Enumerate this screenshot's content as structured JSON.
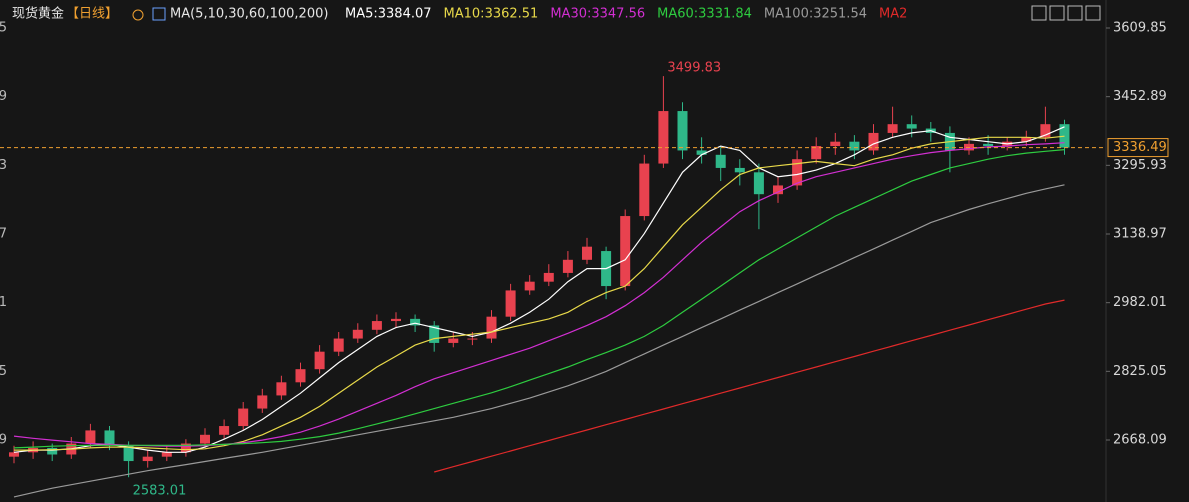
{
  "chart_data": {
    "type": "candlestick",
    "title": "现货黄金",
    "period": "【日线】",
    "ma_label": "MA(5,10,30,60,100,200)",
    "up_color": "#e8424f",
    "down_color": "#2fb889",
    "open": [
      2630,
      2640,
      2650,
      2635,
      2660,
      2690,
      2655,
      2620,
      2630,
      2640,
      2660,
      2680,
      2700,
      2740,
      2770,
      2800,
      2830,
      2870,
      2900,
      2920,
      2940,
      2945,
      2930,
      2890,
      2900,
      2900,
      2950,
      3010,
      3030,
      3050,
      3080,
      3100,
      3020,
      3180,
      3300,
      3420,
      3330,
      3320,
      3290,
      3280,
      3230,
      3250,
      3310,
      3340,
      3350,
      3330,
      3370,
      3390,
      3380,
      3370,
      3330,
      3345,
      3340,
      3350,
      3360,
      3390
    ],
    "high": [
      2655,
      2665,
      2660,
      2675,
      2705,
      2700,
      2665,
      2645,
      2655,
      2670,
      2695,
      2715,
      2755,
      2785,
      2815,
      2845,
      2885,
      2915,
      2935,
      2955,
      2960,
      2955,
      2940,
      2915,
      2915,
      2965,
      3025,
      3045,
      3070,
      3100,
      3130,
      3110,
      3195,
      3320,
      3499.83,
      3440,
      3360,
      3340,
      3310,
      3300,
      3270,
      3330,
      3360,
      3370,
      3365,
      3390,
      3430,
      3410,
      3395,
      3385,
      3360,
      3365,
      3360,
      3375,
      3430,
      3400
    ],
    "low": [
      2615,
      2625,
      2620,
      2625,
      2650,
      2645,
      2583.01,
      2605,
      2620,
      2630,
      2650,
      2670,
      2690,
      2730,
      2760,
      2790,
      2820,
      2860,
      2890,
      2910,
      2925,
      2915,
      2870,
      2880,
      2885,
      2890,
      2940,
      3000,
      3020,
      3040,
      3070,
      2990,
      3010,
      3170,
      3290,
      3310,
      3300,
      3260,
      3250,
      3150,
      3210,
      3240,
      3300,
      3320,
      3310,
      3320,
      3360,
      3360,
      3350,
      3280,
      3320,
      3320,
      3330,
      3340,
      3350,
      3320
    ],
    "close": [
      2640,
      2650,
      2635,
      2660,
      2690,
      2655,
      2620,
      2630,
      2640,
      2660,
      2680,
      2700,
      2740,
      2770,
      2800,
      2830,
      2870,
      2900,
      2920,
      2940,
      2945,
      2930,
      2890,
      2900,
      2900,
      2950,
      3010,
      3030,
      3050,
      3080,
      3110,
      3020,
      3180,
      3300,
      3420,
      3330,
      3320,
      3290,
      3280,
      3230,
      3250,
      3310,
      3340,
      3350,
      3330,
      3370,
      3390,
      3380,
      3370,
      3330,
      3345,
      3340,
      3350,
      3360,
      3390,
      3336.49
    ],
    "series": [
      {
        "name": "MA5:3384.07",
        "color": "#ffffff",
        "values": [
          2640,
          2645,
          2645,
          2648,
          2655,
          2658,
          2652,
          2645,
          2640,
          2640,
          2652,
          2670,
          2690,
          2715,
          2745,
          2775,
          2810,
          2845,
          2875,
          2905,
          2925,
          2935,
          2925,
          2915,
          2905,
          2915,
          2935,
          2960,
          2990,
          3030,
          3060,
          3060,
          3080,
          3140,
          3210,
          3280,
          3320,
          3340,
          3330,
          3290,
          3270,
          3275,
          3285,
          3300,
          3320,
          3345,
          3360,
          3370,
          3375,
          3360,
          3355,
          3350,
          3345,
          3350,
          3365,
          3384.07
        ]
      },
      {
        "name": "MA10:3362.51",
        "color": "#e8d94a",
        "values": [
          2645,
          2645,
          2646,
          2647,
          2650,
          2652,
          2652,
          2650,
          2648,
          2646,
          2648,
          2655,
          2665,
          2680,
          2700,
          2720,
          2745,
          2775,
          2805,
          2835,
          2860,
          2885,
          2900,
          2905,
          2910,
          2915,
          2925,
          2935,
          2945,
          2960,
          2985,
          3005,
          3020,
          3060,
          3110,
          3160,
          3200,
          3240,
          3275,
          3290,
          3295,
          3300,
          3305,
          3300,
          3295,
          3310,
          3320,
          3335,
          3345,
          3350,
          3355,
          3360,
          3360,
          3360,
          3358,
          3362.51
        ]
      },
      {
        "name": "MA30:3347.56",
        "color": "#d22fd2",
        "values": [
          2677,
          2672,
          2668,
          2664,
          2660,
          2658,
          2656,
          2655,
          2654,
          2654,
          2655,
          2658,
          2662,
          2668,
          2676,
          2686,
          2700,
          2716,
          2734,
          2752,
          2770,
          2790,
          2808,
          2822,
          2836,
          2850,
          2864,
          2878,
          2895,
          2912,
          2930,
          2950,
          2975,
          3005,
          3040,
          3080,
          3120,
          3155,
          3190,
          3215,
          3235,
          3255,
          3270,
          3280,
          3290,
          3300,
          3310,
          3318,
          3325,
          3330,
          3334,
          3338,
          3340,
          3343,
          3345,
          3347.56
        ]
      },
      {
        "name": "MA60:3331.84",
        "color": "#2ecc40",
        "values": [
          2650,
          2652,
          2654,
          2655,
          2656,
          2656,
          2656,
          2656,
          2656,
          2656,
          2657,
          2658,
          2660,
          2662,
          2665,
          2670,
          2676,
          2684,
          2694,
          2705,
          2716,
          2728,
          2740,
          2752,
          2764,
          2776,
          2790,
          2805,
          2820,
          2835,
          2852,
          2868,
          2885,
          2905,
          2930,
          2960,
          2990,
          3020,
          3050,
          3080,
          3105,
          3130,
          3155,
          3180,
          3200,
          3220,
          3240,
          3260,
          3275,
          3290,
          3300,
          3310,
          3318,
          3324,
          3328,
          3331.84
        ]
      },
      {
        "name": "MA100:3251.54",
        "color": "#9a9a9a",
        "values": [
          2538,
          2548,
          2558,
          2566,
          2574,
          2582,
          2590,
          2598,
          2605,
          2612,
          2619,
          2626,
          2633,
          2640,
          2648,
          2656,
          2664,
          2672,
          2680,
          2688,
          2696,
          2704,
          2712,
          2720,
          2730,
          2740,
          2752,
          2764,
          2778,
          2792,
          2808,
          2825,
          2845,
          2865,
          2885,
          2905,
          2925,
          2945,
          2965,
          2985,
          3005,
          3025,
          3045,
          3065,
          3085,
          3105,
          3125,
          3145,
          3165,
          3180,
          3195,
          3208,
          3220,
          3232,
          3242,
          3251.54
        ]
      },
      {
        "name": "MA2",
        "color": "#e02a2a",
        "values": [
          null,
          null,
          null,
          null,
          null,
          null,
          null,
          null,
          null,
          null,
          null,
          null,
          null,
          null,
          null,
          null,
          null,
          null,
          null,
          null,
          null,
          null,
          2595,
          2607,
          2619,
          2631,
          2643,
          2655,
          2667,
          2679,
          2691,
          2703,
          2715,
          2727,
          2739,
          2751,
          2763,
          2775,
          2787,
          2799,
          2811,
          2823,
          2835,
          2847,
          2859,
          2871,
          2883,
          2895,
          2907,
          2919,
          2931,
          2943,
          2955,
          2967,
          2979,
          2988
        ]
      }
    ],
    "ylim": [
      2526.4,
      3673.85
    ],
    "yticks": [
      3609.85,
      3452.89,
      3295.93,
      3138.97,
      2982.01,
      2825.05,
      2668.09
    ]
  }
}
